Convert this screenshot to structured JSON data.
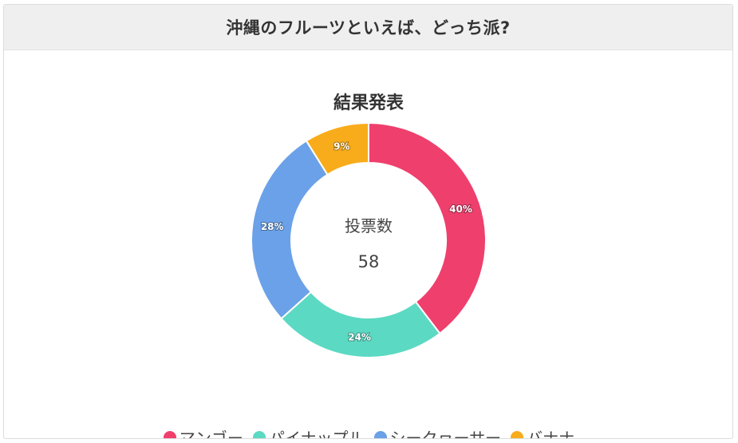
{
  "header": {
    "title": "沖縄のフルーツといえば、どっち派?"
  },
  "center": {
    "label": "投票数",
    "value": "58"
  },
  "chart_data": {
    "type": "pie",
    "variant": "doughnut",
    "title": "結果発表",
    "legend_position": "bottom",
    "categories": [
      "マンゴー",
      "パイナップル",
      "シークヮーサー",
      "バナナ"
    ],
    "values": [
      40,
      24,
      28,
      9
    ],
    "value_labels": [
      "40%",
      "24%",
      "28%",
      "9%"
    ],
    "colors": [
      "#ef3f6d",
      "#5bd9c3",
      "#6ba1e8",
      "#f8ac1b"
    ]
  }
}
